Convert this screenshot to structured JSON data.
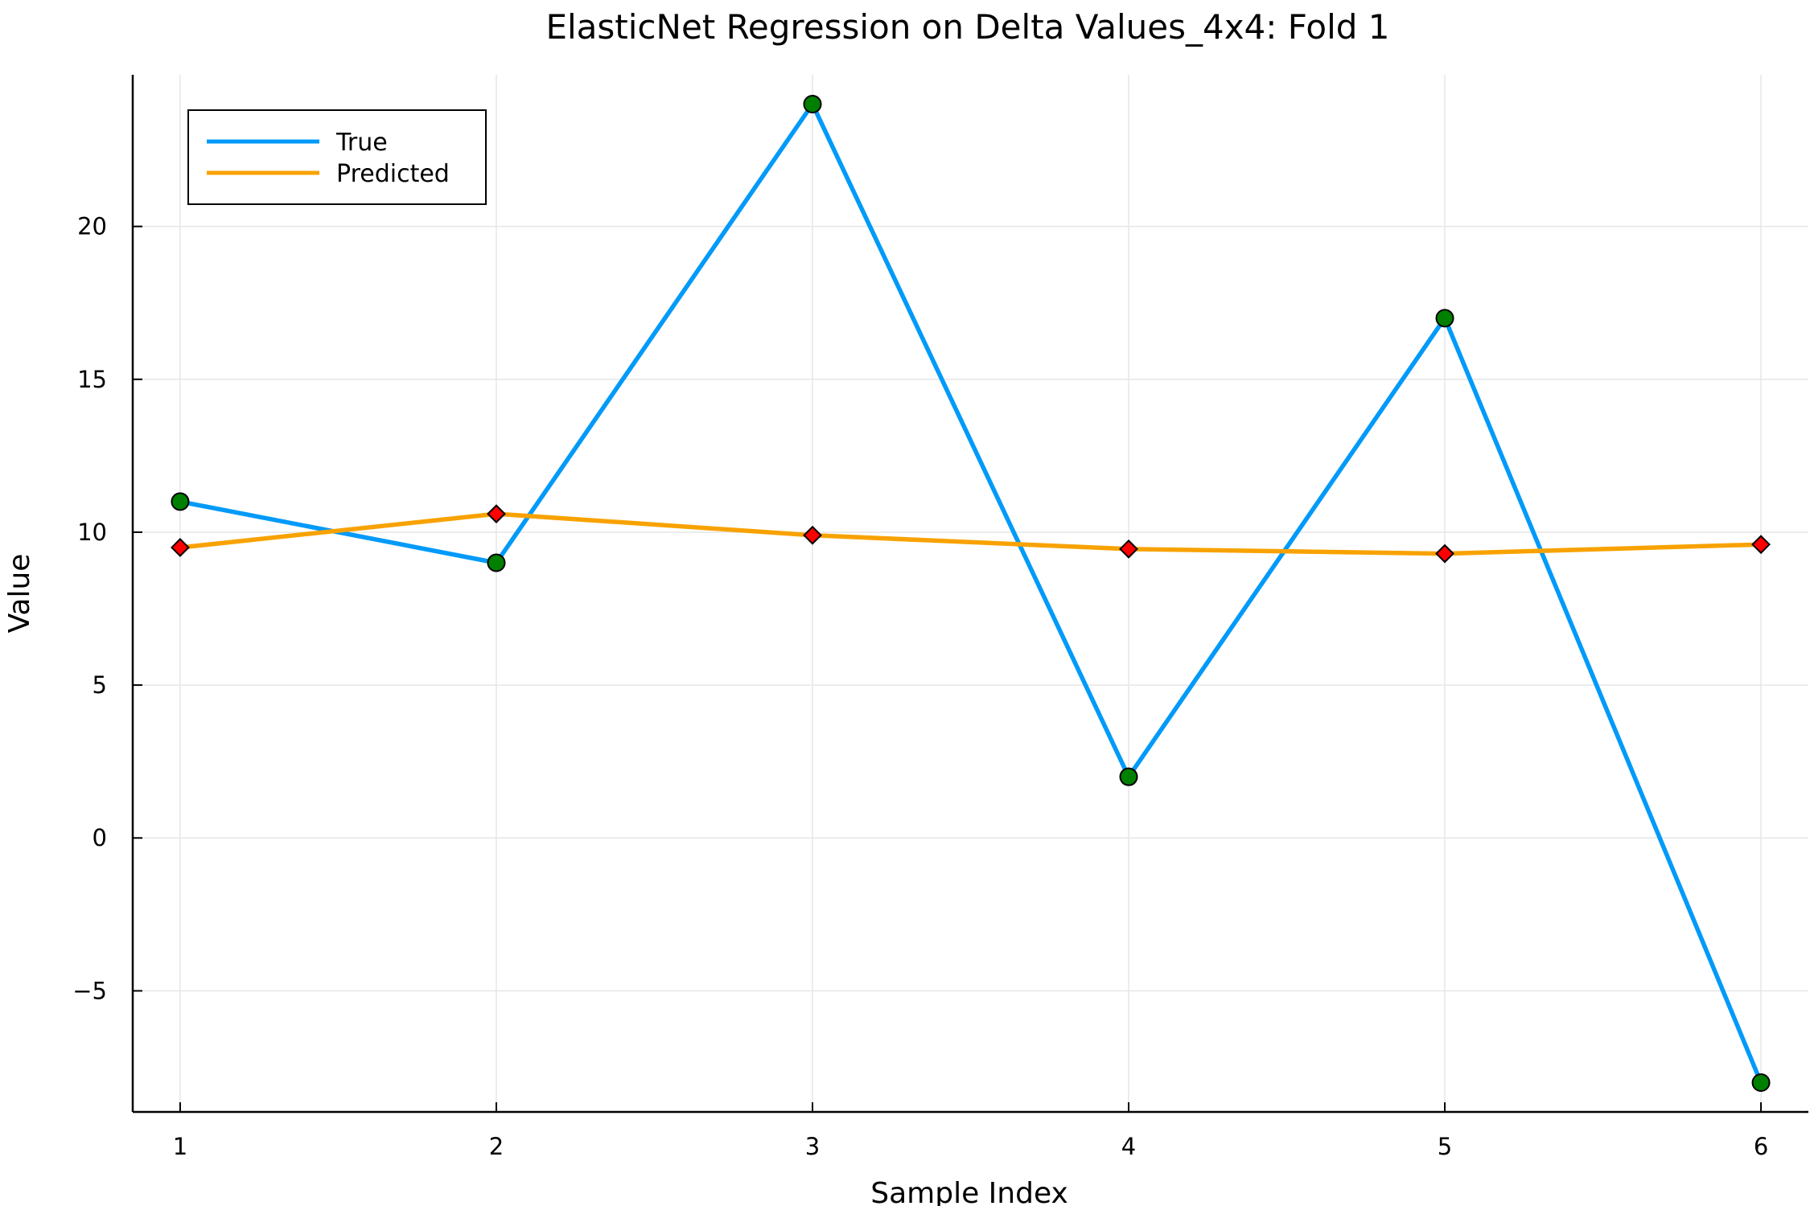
{
  "chart_data": {
    "type": "line",
    "title": "ElasticNet Regression on Delta Values_4x4: Fold 1",
    "xlabel": "Sample Index",
    "ylabel": "Value",
    "x": [
      1,
      2,
      3,
      4,
      5,
      6
    ],
    "xticks": [
      "1",
      "2",
      "3",
      "4",
      "5",
      "6"
    ],
    "yticks": [
      "−5",
      "0",
      "5",
      "10",
      "15",
      "20"
    ],
    "ytick_values": [
      -5,
      0,
      5,
      10,
      15,
      20
    ],
    "xlim": [
      0.85,
      6.15
    ],
    "ylim": [
      -8.96,
      24.96
    ],
    "grid": true,
    "legend_position": "top-left",
    "series": [
      {
        "name": "True",
        "values": [
          11,
          9,
          24,
          2,
          17,
          -8
        ],
        "line_color": "#009af9",
        "marker": "circle",
        "marker_color": "#008000"
      },
      {
        "name": "Predicted",
        "values": [
          9.5,
          10.6,
          9.9,
          9.45,
          9.3,
          9.6
        ],
        "line_color": "#f8a201",
        "marker": "diamond",
        "marker_color": "#ff0000"
      }
    ]
  }
}
